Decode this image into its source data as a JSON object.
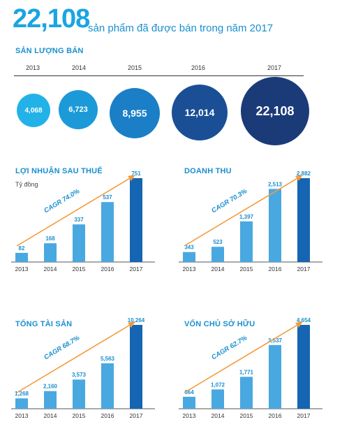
{
  "headline": {
    "value": "22,108",
    "text": "sản phẩm đã được bán trong năm 2017"
  },
  "sales": {
    "title": "SẢN LƯỢNG BÁN",
    "years": [
      "2013",
      "2014",
      "2015",
      "2016",
      "2017"
    ],
    "values": [
      "4,068",
      "6,723",
      "8,955",
      "12,014",
      "22,108"
    ],
    "colors": [
      "#22b2e8",
      "#1c9ad8",
      "#1a7fc6",
      "#1a4f96",
      "#1b3a78"
    ]
  },
  "chart_data": [
    {
      "type": "bar",
      "title": "LỢI NHUẬN SAU THUẾ",
      "subtitle": "Tỷ đồng",
      "categories": [
        "2013",
        "2014",
        "2015",
        "2016",
        "2017"
      ],
      "values": [
        82,
        168,
        337,
        537,
        751
      ],
      "value_labels": [
        "82",
        "168",
        "337",
        "537",
        "751"
      ],
      "annotation": "CAGR 74.0%",
      "ylim": [
        0,
        751
      ]
    },
    {
      "type": "bar",
      "title": "DOANH THU",
      "categories": [
        "2013",
        "2014",
        "2015",
        "2016",
        "2017"
      ],
      "values": [
        343,
        523,
        1397,
        2513,
        2882
      ],
      "value_labels": [
        "343",
        "523",
        "1,397",
        "2,513",
        "2,882"
      ],
      "annotation": "CAGR 70.3%",
      "ylim": [
        0,
        2882
      ]
    },
    {
      "type": "bar",
      "title": "TỔNG TÀI SẢN",
      "categories": [
        "2013",
        "2014",
        "2015",
        "2016",
        "2017"
      ],
      "values": [
        1268,
        2160,
        3573,
        5563,
        10264
      ],
      "value_labels": [
        "1,268",
        "2,160",
        "3,573",
        "5,563",
        "10,264"
      ],
      "annotation": "CAGR 68.7%",
      "ylim": [
        0,
        10264
      ]
    },
    {
      "type": "bar",
      "title": "VỐN CHỦ SỞ HỮU",
      "categories": [
        "2013",
        "2014",
        "2015",
        "2016",
        "2017"
      ],
      "values": [
        664,
        1072,
        1771,
        3537,
        4654
      ],
      "value_labels": [
        "664",
        "1,072",
        "1,771",
        "3,537",
        "4,654"
      ],
      "annotation": "CAGR 62.7%",
      "ylim": [
        0,
        4654
      ]
    }
  ],
  "colors": {
    "bar": "#4aa8e0",
    "bar_last": "#1565b3",
    "arrow": "#f39a3a",
    "label": "#1a8fd0",
    "baseline": "#555555"
  }
}
